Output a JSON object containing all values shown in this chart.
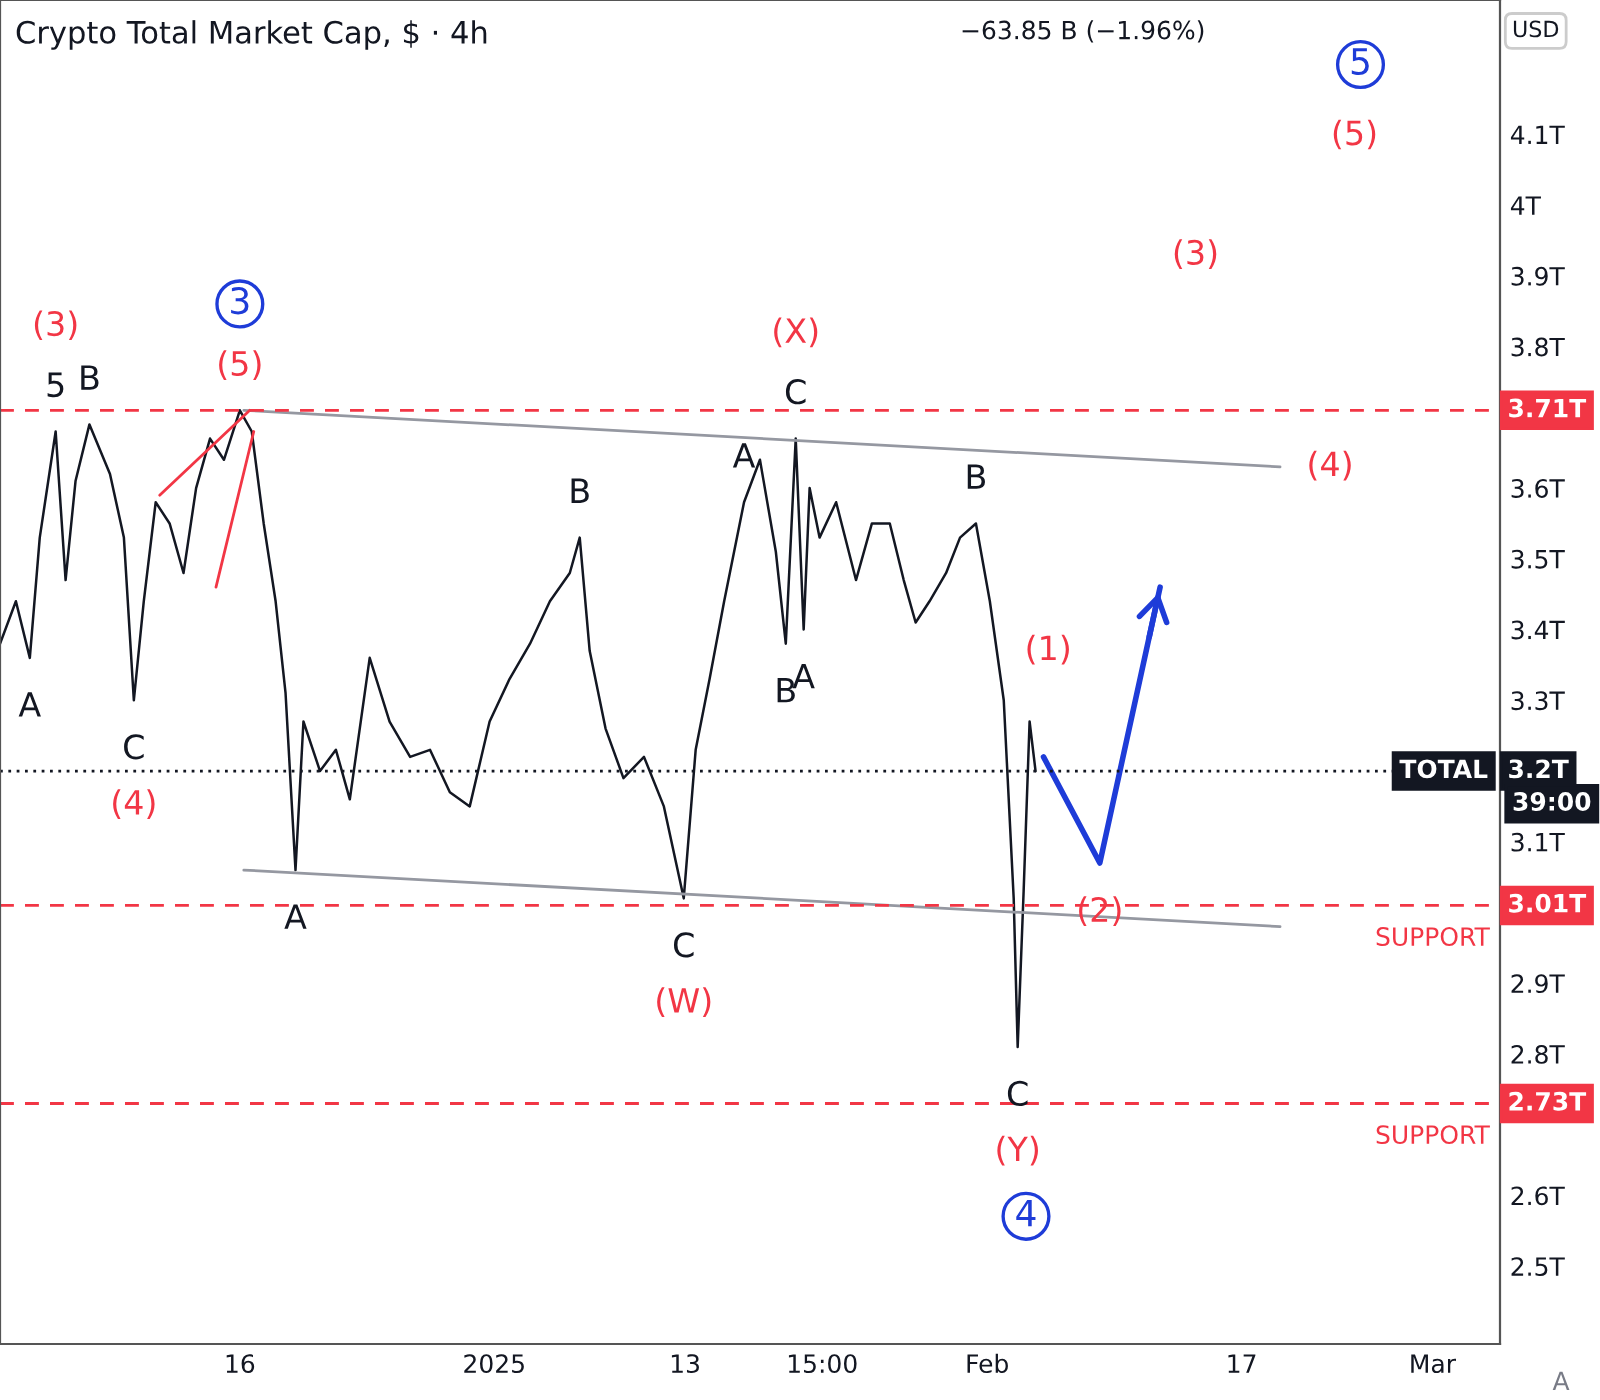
{
  "chart_data": {
    "type": "line",
    "title": "Crypto Total Market Cap, $ · 4h",
    "subtitle": "−63.85 B (−1.96%)",
    "ylabel": "USD",
    "xlim": [
      "2024-11-30T22:00",
      "2025-03-05T06:00"
    ],
    "ylim": [
      2.39,
      4.29
    ],
    "xticks": [
      {
        "value": "2024-12-16",
        "label": "16"
      },
      {
        "value": "2025-01-01",
        "label": "2025"
      },
      {
        "value": "2025-01-13",
        "label": "13"
      },
      {
        "value": "2025-01-21T15:00",
        "label": "15:00"
      },
      {
        "value": "2025-02-01",
        "label": "Feb"
      },
      {
        "value": "2025-02-17",
        "label": "17"
      },
      {
        "value": "2025-03-01",
        "label": "Mar"
      }
    ],
    "yticks": [
      {
        "value": 2.5,
        "label": "2.5T"
      },
      {
        "value": 2.6,
        "label": "2.6T"
      },
      {
        "value": 2.8,
        "label": "2.8T"
      },
      {
        "value": 2.9,
        "label": "2.9T"
      },
      {
        "value": 3.1,
        "label": "3.1T"
      },
      {
        "value": 3.3,
        "label": "3.3T"
      },
      {
        "value": 3.4,
        "label": "3.4T"
      },
      {
        "value": 3.5,
        "label": "3.5T"
      },
      {
        "value": 3.6,
        "label": "3.6T"
      },
      {
        "value": 3.8,
        "label": "3.8T"
      },
      {
        "value": 3.9,
        "label": "3.9T"
      },
      {
        "value": 4.0,
        "label": "4T"
      },
      {
        "value": 4.1,
        "label": "4.1T"
      }
    ],
    "grid": false,
    "legend": false,
    "series": [
      {
        "color": "#131722",
        "x": [
          "2024-11-30T22:00",
          "2024-12-01T22:00",
          "2024-12-02T19:00",
          "2024-12-03T10:00",
          "2024-12-04T10:00",
          "2024-12-05T01:00",
          "2024-12-05T16:00",
          "2024-12-06T13:00",
          "2024-12-07T20:00",
          "2024-12-08T17:00",
          "2024-12-09T08:00",
          "2024-12-09T23:00",
          "2024-12-10T17:00",
          "2024-12-11T14:00",
          "2024-12-12T11:00",
          "2024-12-13T06:00",
          "2024-12-14T03:00",
          "2024-12-15T00:00",
          "2024-12-16T00:00",
          "2024-12-16T18:00",
          "2024-12-17T12:00",
          "2024-12-18T06:00",
          "2024-12-18T21:00",
          "2024-12-19T12:00",
          "2024-12-20T00:00",
          "2024-12-21T01:00",
          "2024-12-22T01:00",
          "2024-12-22T22:00",
          "2024-12-24T04:00",
          "2024-12-25T10:00",
          "2024-12-26T17:00",
          "2024-12-27T23:00",
          "2024-12-29T05:00",
          "2024-12-30T11:00",
          "2024-12-31T17:00",
          "2025-01-01T23:00",
          "2025-01-03T06:00",
          "2025-01-04T12:00",
          "2025-01-05T18:00",
          "2025-01-06T09:00",
          "2025-01-07T00:00",
          "2025-01-08T00:00",
          "2025-01-09T03:00",
          "2025-01-10T10:00",
          "2025-01-11T16:00",
          "2025-01-12T22:00",
          "2025-01-13T16:00",
          "2025-01-14T13:00",
          "2025-01-15T11:00",
          "2025-01-16T17:00",
          "2025-01-17T17:00",
          "2025-01-18T17:00",
          "2025-01-19T08:00",
          "2025-01-19T23:00",
          "2025-01-20T11:00",
          "2025-01-20T20:00",
          "2025-01-21T11:00",
          "2025-01-22T12:00",
          "2025-01-23T18:00",
          "2025-01-24T18:00",
          "2025-01-25T21:00",
          "2025-01-26T18:00",
          "2025-01-27T12:00",
          "2025-01-28T09:00",
          "2025-01-29T10:00",
          "2025-01-30T07:00",
          "2025-01-31T07:00",
          "2025-02-01T04:00",
          "2025-02-02T01:00",
          "2025-02-02T16:00",
          "2025-02-02T22:00",
          "2025-02-03T07:00",
          "2025-02-03T16:00",
          "2025-02-04T01:00"
        ],
        "values": [
          3.38,
          3.44,
          3.36,
          3.53,
          3.68,
          3.47,
          3.61,
          3.69,
          3.62,
          3.53,
          3.3,
          3.44,
          3.58,
          3.55,
          3.48,
          3.6,
          3.67,
          3.64,
          3.71,
          3.68,
          3.55,
          3.44,
          3.31,
          3.06,
          3.27,
          3.2,
          3.23,
          3.16,
          3.36,
          3.27,
          3.22,
          3.23,
          3.17,
          3.15,
          3.27,
          3.33,
          3.38,
          3.44,
          3.48,
          3.53,
          3.37,
          3.26,
          3.19,
          3.22,
          3.15,
          3.02,
          3.23,
          3.33,
          3.44,
          3.58,
          3.64,
          3.51,
          3.38,
          3.67,
          3.4,
          3.6,
          3.53,
          3.58,
          3.47,
          3.55,
          3.55,
          3.47,
          3.41,
          3.44,
          3.48,
          3.53,
          3.55,
          3.44,
          3.3,
          3.02,
          2.81,
          3.03,
          3.27,
          3.2
        ]
      },
      {
        "type": "line",
        "color": "#9598a1",
        "x": [
          "2024-12-16T06:00",
          "2025-02-19T10:00"
        ],
        "values": [
          3.71,
          3.63
        ]
      },
      {
        "type": "line",
        "color": "#9598a1",
        "x": [
          "2024-12-16T06:00",
          "2025-02-19T10:00"
        ],
        "values": [
          3.06,
          2.98
        ]
      },
      {
        "type": "line",
        "color": "#f23645",
        "x": [
          "2024-12-10T23:00",
          "2024-12-16T15:00"
        ],
        "values": [
          3.59,
          3.71
        ]
      },
      {
        "type": "line",
        "color": "#f23645",
        "x": [
          "2024-12-14T12:00",
          "2024-12-16T21:00"
        ],
        "values": [
          3.46,
          3.68
        ]
      },
      {
        "type": "line",
        "color": "#1e3cd8",
        "x": [
          "2025-02-04T13:00",
          "2025-02-08T02:00",
          "2025-02-11T21:00"
        ],
        "values": [
          3.22,
          3.07,
          3.46
        ]
      }
    ],
    "ref_lines": [
      {
        "axis": "y",
        "value": 3.71,
        "label": "3.71T",
        "color": "#f23645",
        "line_style": "dashed"
      },
      {
        "axis": "y",
        "value": 3.01,
        "label": "3.01T",
        "color": "#f23645",
        "line_style": "dashed"
      },
      {
        "axis": "y",
        "value": 2.73,
        "label": "2.73T",
        "color": "#f23645",
        "line_style": "dashed"
      },
      {
        "axis": "y",
        "value": 3.2,
        "label": "3.2T",
        "color": "#131722",
        "line_style": "dotted"
      }
    ],
    "annotations": [
      {
        "text": "5",
        "x": "2024-12-04T10:00",
        "y": 3.68
      },
      {
        "text": "B",
        "x": "2024-12-06T13:00",
        "y": 3.69
      },
      {
        "text": "A",
        "x": "2024-12-02T19:00",
        "y": 3.36
      },
      {
        "text": "C",
        "x": "2024-12-09T08:00",
        "y": 3.3
      },
      {
        "text": "A",
        "x": "2024-12-19T12:00",
        "y": 3.06
      },
      {
        "text": "B",
        "x": "2025-01-06T09:00",
        "y": 3.53
      },
      {
        "text": "C",
        "x": "2025-01-12T22:00",
        "y": 3.02
      },
      {
        "text": "A",
        "x": "2025-01-16T17:00",
        "y": 3.58
      },
      {
        "text": "C",
        "x": "2025-01-19T23:00",
        "y": 3.67
      },
      {
        "text": "B",
        "x": "2025-01-19T08:00",
        "y": 3.38
      },
      {
        "text": "A",
        "x": "2025-01-20T11:00",
        "y": 3.4
      },
      {
        "text": "B",
        "x": "2025-01-31T07:00",
        "y": 3.55
      },
      {
        "text": "C",
        "x": "2025-02-02T22:00",
        "y": 2.81
      },
      {
        "text": "(3)",
        "x": "2024-12-04T10:00",
        "y": 3.68
      },
      {
        "text": "(5)",
        "x": "2024-12-16T00:00",
        "y": 3.71
      },
      {
        "text": "(4)",
        "x": "2024-12-09T08:00",
        "y": 3.3
      },
      {
        "text": "(X)",
        "x": "2025-01-19T23:00",
        "y": 3.67
      },
      {
        "text": "(W)",
        "x": "2025-01-12T22:00",
        "y": 3.02
      },
      {
        "text": "(Y)",
        "x": "2025-02-02T22:00",
        "y": 2.81
      },
      {
        "text": "(1)",
        "x": "2025-02-02T01:00",
        "y": 3.3
      },
      {
        "text": "(2)",
        "x": "2025-02-08T02:00",
        "y": 3.07
      },
      {
        "text": "(4)",
        "x": "2025-02-19T10:00",
        "y": 3.63
      },
      "(3)",
      "(5)",
      {
        "text": "3",
        "x": "2024-12-16T00:00",
        "y": 3.71
      },
      "4",
      "5",
      {
        "text": "SUPPORT",
        "x": "2025-03-01T00:00",
        "y": 3.01
      },
      {
        "text": "SUPPORT",
        "x": "2025-03-01T00:00",
        "y": 2.73
      },
      {
        "text": "TOTAL",
        "x": "2025-03-04T12:00",
        "y": 3.2
      },
      "39:00",
      "A"
    ]
  }
}
